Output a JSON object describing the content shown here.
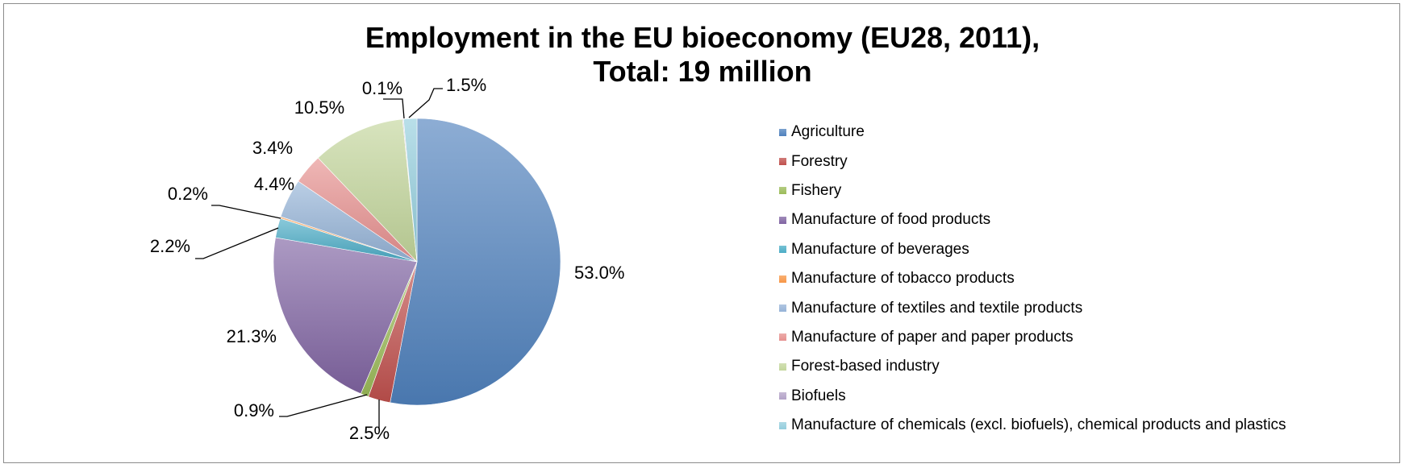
{
  "chart_data": {
    "type": "pie",
    "title_lines": [
      "Employment in the EU bioeconomy (EU28, 2011),",
      "Total: 19 million"
    ],
    "legend_position": "right",
    "slices": [
      {
        "name": "Agriculture",
        "value": 53.0,
        "label": "53.0%",
        "color": "#4f81bd"
      },
      {
        "name": "Forestry",
        "value": 2.5,
        "label": "2.5%",
        "color": "#c0504d"
      },
      {
        "name": "Fishery",
        "value": 0.9,
        "label": "0.9%",
        "color": "#9bbb59"
      },
      {
        "name": "Manufacture of food products",
        "value": 21.3,
        "label": "21.3%",
        "color": "#8064a2"
      },
      {
        "name": "Manufacture of beverages",
        "value": 2.2,
        "label": "2.2%",
        "color": "#4bacc6"
      },
      {
        "name": "Manufacture of tobacco products",
        "value": 0.2,
        "label": "0.2%",
        "color": "#f79646"
      },
      {
        "name": "Manufacture of textiles and textile products",
        "value": 4.4,
        "label": "4.4%",
        "color": "#95b3d7"
      },
      {
        "name": "Manufacture of paper and paper products",
        "value": 3.4,
        "label": "3.4%",
        "color": "#e6908e"
      },
      {
        "name": "Forest-based industry",
        "value": 10.5,
        "label": "10.5%",
        "color": "#c3d69b"
      },
      {
        "name": "Biofuels",
        "value": 0.1,
        "label": "0.1%",
        "color": "#b3a2c7"
      },
      {
        "name": "Manufacture of chemicals (excl. biofuels), chemical products and plastics",
        "value": 1.5,
        "label": "1.5%",
        "color": "#93cddd"
      }
    ]
  }
}
